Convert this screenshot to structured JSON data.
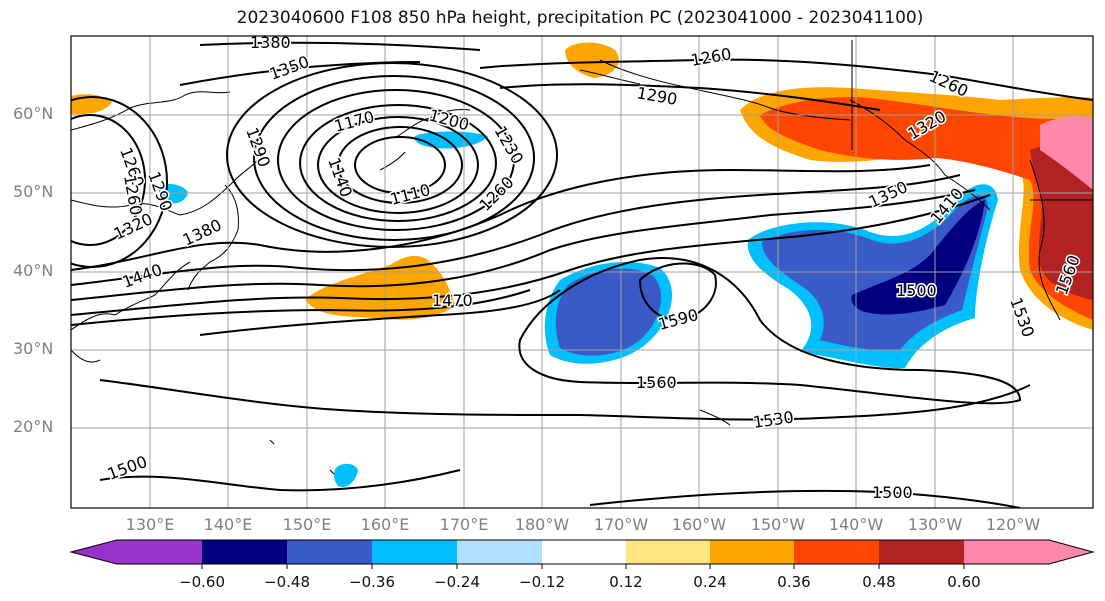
{
  "title": "2023040600 F108 850 hPa height, precipitation PC (2023041000 - 2023041100)",
  "lat_labels": [
    "60°N",
    "50°N",
    "40°N",
    "30°N",
    "20°N"
  ],
  "lon_labels": [
    "130°E",
    "140°E",
    "150°E",
    "160°E",
    "170°E",
    "180°W",
    "170°W",
    "160°W",
    "150°W",
    "140°W",
    "130°W",
    "120°W"
  ],
  "contour_labels": [
    "1380",
    "1350",
    "1290",
    "1260",
    "1320",
    "1380",
    "1440",
    "1170",
    "1200",
    "1230",
    "1140",
    "1110",
    "1260",
    "1260",
    "1290",
    "1260",
    "1320",
    "1350",
    "1410",
    "1470",
    "1500",
    "1590",
    "1560",
    "1560",
    "1530",
    "1500",
    "1500",
    "1530",
    "1290",
    "1260"
  ],
  "colorbar": {
    "ticks": [
      "−0.60",
      "−0.48",
      "−0.36",
      "−0.24",
      "−0.12",
      "0.12",
      "0.24",
      "0.36",
      "0.48",
      "0.60"
    ],
    "colors": [
      "#9932cc",
      "#000080",
      "#3a5bc7",
      "#00bfff",
      "#b0e0ff",
      "#ffffff",
      "#ffe680",
      "#ffa500",
      "#ff4500",
      "#b22222",
      "#ff88aa"
    ]
  },
  "colors": {
    "contour": "#000000",
    "coast": "#000000",
    "grid": "#a0a0a0"
  }
}
